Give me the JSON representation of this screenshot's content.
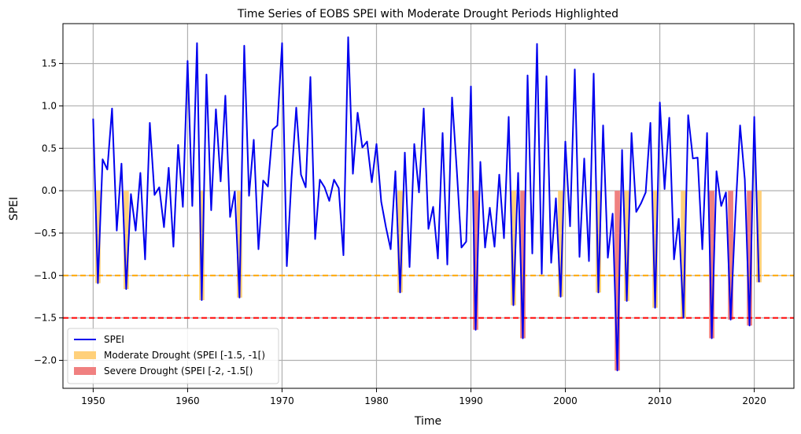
{
  "chart_data": {
    "type": "line",
    "title": "Time Series of EOBS SPEI with Moderate Drought Periods Highlighted",
    "xlabel": "Time",
    "ylabel": "SPEI",
    "xlim": [
      1946.8,
      2024.2
    ],
    "ylim": [
      -2.33,
      1.97
    ],
    "xticks": [
      1950,
      1960,
      1970,
      1980,
      1990,
      2000,
      2010,
      2020
    ],
    "yticks": [
      -2.0,
      -1.5,
      -1.0,
      -0.5,
      0.0,
      0.5,
      1.0,
      1.5
    ],
    "grid": true,
    "legend_position": "lower-left",
    "thresholds": [
      {
        "name": "moderate",
        "value": -1.0,
        "color": "#ffa500",
        "style": "dashed"
      },
      {
        "name": "severe",
        "value": -1.5,
        "color": "#ff0000",
        "style": "dashed"
      }
    ],
    "series": [
      {
        "name": "SPEI",
        "color": "#0000ee",
        "x": [
          1950.0,
          1950.5,
          1951.0,
          1951.5,
          1952.0,
          1952.5,
          1953.0,
          1953.5,
          1954.0,
          1954.5,
          1955.0,
          1955.5,
          1956.0,
          1956.5,
          1957.0,
          1957.5,
          1958.0,
          1958.5,
          1959.0,
          1959.5,
          1960.0,
          1960.5,
          1961.0,
          1961.5,
          1962.0,
          1962.5,
          1963.0,
          1963.5,
          1964.0,
          1964.5,
          1965.0,
          1965.5,
          1966.0,
          1966.5,
          1967.0,
          1967.5,
          1968.0,
          1968.5,
          1969.0,
          1969.5,
          1970.0,
          1970.5,
          1971.0,
          1971.5,
          1972.0,
          1972.5,
          1973.0,
          1973.5,
          1974.0,
          1974.5,
          1975.0,
          1975.5,
          1976.0,
          1976.5,
          1977.0,
          1977.5,
          1978.0,
          1978.5,
          1979.0,
          1979.5,
          1980.0,
          1980.5,
          1981.0,
          1981.5,
          1982.0,
          1982.5,
          1983.0,
          1983.5,
          1984.0,
          1984.5,
          1985.0,
          1985.5,
          1986.0,
          1986.5,
          1987.0,
          1987.5,
          1988.0,
          1988.5,
          1989.0,
          1989.5,
          1990.0,
          1990.5,
          1991.0,
          1991.5,
          1992.0,
          1992.5,
          1993.0,
          1993.5,
          1994.0,
          1994.5,
          1995.0,
          1995.5,
          1996.0,
          1996.5,
          1997.0,
          1997.5,
          1998.0,
          1998.5,
          1999.0,
          1999.5,
          2000.0,
          2000.5,
          2001.0,
          2001.5,
          2002.0,
          2002.5,
          2003.0,
          2003.5,
          2004.0,
          2004.5,
          2005.0,
          2005.5,
          2006.0,
          2006.5,
          2007.0,
          2007.5,
          2008.0,
          2008.5,
          2009.0,
          2009.5,
          2010.0,
          2010.5,
          2011.0,
          2011.5,
          2012.0,
          2012.5,
          2013.0,
          2013.5,
          2014.0,
          2014.5,
          2015.0,
          2015.5,
          2016.0,
          2016.5,
          2017.0,
          2017.5,
          2018.0,
          2018.5,
          2019.0,
          2019.5,
          2020.0,
          2020.5
        ],
        "y": [
          0.85,
          -1.09,
          0.37,
          0.25,
          0.97,
          -0.47,
          0.32,
          -1.16,
          -0.04,
          -0.47,
          0.21,
          -0.81,
          0.8,
          -0.05,
          0.04,
          -0.43,
          0.27,
          -0.66,
          0.54,
          -0.19,
          1.53,
          -0.18,
          1.74,
          -1.29,
          1.37,
          -0.23,
          0.96,
          0.11,
          1.12,
          -0.31,
          -0.01,
          -1.26,
          1.71,
          -0.06,
          0.6,
          -0.69,
          0.12,
          0.05,
          0.72,
          0.77,
          1.74,
          -0.89,
          0.15,
          0.98,
          0.19,
          0.04,
          1.34,
          -0.57,
          0.13,
          0.04,
          -0.12,
          0.13,
          0.03,
          -0.76,
          1.81,
          0.2,
          0.92,
          0.51,
          0.58,
          0.1,
          0.55,
          -0.13,
          -0.43,
          -0.69,
          0.23,
          -1.2,
          0.45,
          -0.9,
          0.55,
          -0.02,
          0.97,
          -0.45,
          -0.19,
          -0.8,
          0.68,
          -0.87,
          1.1,
          0.25,
          -0.67,
          -0.6,
          1.23,
          -1.64,
          0.34,
          -0.67,
          -0.2,
          -0.66,
          0.19,
          -0.56,
          0.87,
          -1.35,
          0.21,
          -1.74,
          1.36,
          -0.74,
          1.73,
          -0.98,
          1.35,
          -0.85,
          -0.09,
          -1.25,
          0.58,
          -0.42,
          1.43,
          -0.78,
          0.38,
          -0.83,
          1.38,
          -1.2,
          0.77,
          -0.79,
          -0.27,
          -2.12,
          0.48,
          -1.3,
          0.68,
          -0.25,
          -0.15,
          -0.02,
          0.8,
          -1.38,
          1.04,
          0.02,
          0.86,
          -0.81,
          -0.33,
          -1.5,
          0.89,
          0.38,
          0.39,
          -0.69,
          0.68,
          -1.74,
          0.23,
          -0.18,
          -0.02,
          -1.52,
          -0.28,
          0.77,
          0.13,
          -1.59,
          0.87,
          -1.08
        ]
      }
    ],
    "legend": [
      {
        "label": "SPEI",
        "kind": "line",
        "color": "#0000ee"
      },
      {
        "label": "Moderate Drought (SPEI [-1.5, -1[)",
        "kind": "patch",
        "color": "#ffd07a"
      },
      {
        "label": "Severe Drought (SPEI [-2, -1.5[)",
        "kind": "patch",
        "color": "#f08080"
      }
    ],
    "drought_fill": {
      "moderate_range": [
        -1.5,
        -1.0
      ],
      "severe_range": [
        -2.0,
        -1.5
      ],
      "moderate_color": "#ffd07a",
      "severe_color": "#f08080"
    }
  }
}
